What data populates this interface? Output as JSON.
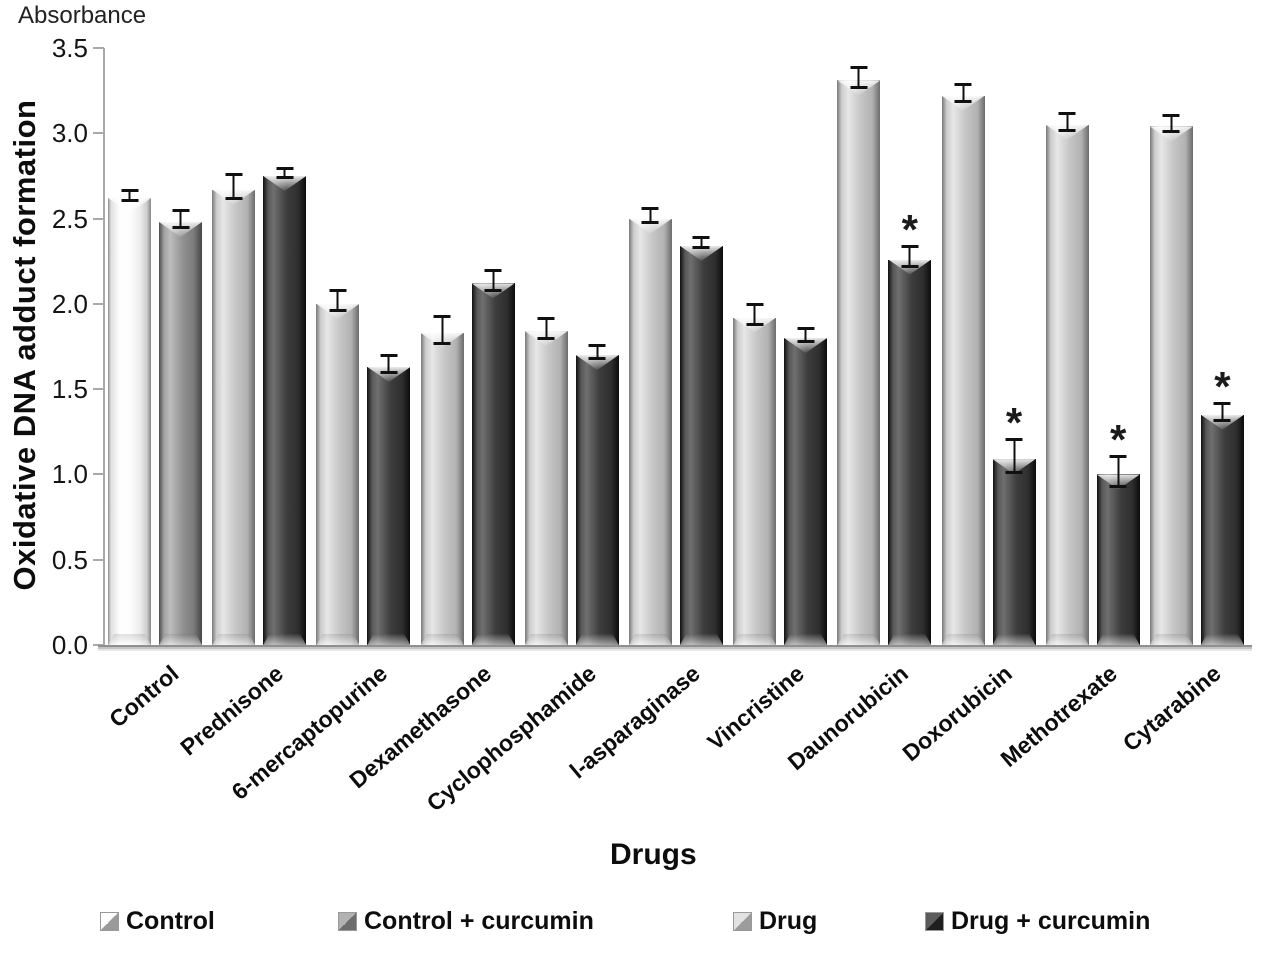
{
  "absorbance_label": "Absorbance",
  "y_axis": {
    "title": "Oxidative DNA adduct formation",
    "ticks": [
      "0.0",
      "0.5",
      "1.0",
      "1.5",
      "2.0",
      "2.5",
      "3.0",
      "3.5"
    ],
    "min": 0.0,
    "max": 3.5
  },
  "x_axis": {
    "title": "Drugs"
  },
  "legend": {
    "position": "bottom",
    "items": [
      {
        "label": "Control",
        "color": "#f7f7f7"
      },
      {
        "label": "Control + curcumin",
        "color": "#8e8e8e"
      },
      {
        "label": "Drug",
        "color": "#c6c6c6"
      },
      {
        "label": "Drug + curcumin",
        "color": "#3d3d3d"
      }
    ]
  },
  "chart_data": {
    "type": "bar",
    "title": "",
    "xlabel": "Drugs",
    "ylabel": "Oxidative DNA adduct formation (Absorbance)",
    "ylim": [
      0,
      3.5
    ],
    "grid": false,
    "error_bars": true,
    "error_bar_color": "#101010",
    "significance_marker": "*",
    "categories": [
      "Control",
      "Prednisone",
      "6-mercaptopurine",
      "Dexamethasone",
      "Cyclophosphamide",
      "l-asparaginase",
      "Vincristine",
      "Daunorubicin",
      "Doxorubicin",
      "Methotrexate",
      "Cytarabine"
    ],
    "series": [
      {
        "name": "Control",
        "color": "#f7f7f7"
      },
      {
        "name": "Control + curcumin",
        "color": "#8e8e8e"
      },
      {
        "name": "Drug",
        "color": "#c6c6c6"
      },
      {
        "name": "Drug + curcumin",
        "color": "#3d3d3d"
      }
    ],
    "groups": [
      {
        "category": "Control",
        "bars": [
          {
            "series": "Control",
            "value": 2.62,
            "error": 0.02,
            "significant": false
          },
          {
            "series": "Control + curcumin",
            "value": 2.48,
            "error": 0.04,
            "significant": false
          }
        ]
      },
      {
        "category": "Prednisone",
        "bars": [
          {
            "series": "Drug",
            "value": 2.67,
            "error": 0.06,
            "significant": false
          },
          {
            "series": "Drug + curcumin",
            "value": 2.75,
            "error": 0.02,
            "significant": false
          }
        ]
      },
      {
        "category": "6-mercaptopurine",
        "bars": [
          {
            "series": "Drug",
            "value": 2.0,
            "error": 0.05,
            "significant": false
          },
          {
            "series": "Drug + curcumin",
            "value": 1.63,
            "error": 0.04,
            "significant": false
          }
        ]
      },
      {
        "category": "Dexamethasone",
        "bars": [
          {
            "series": "Drug",
            "value": 1.83,
            "error": 0.07,
            "significant": false
          },
          {
            "series": "Drug + curcumin",
            "value": 2.12,
            "error": 0.05,
            "significant": false
          }
        ]
      },
      {
        "category": "Cyclophosphamide",
        "bars": [
          {
            "series": "Drug",
            "value": 1.84,
            "error": 0.05,
            "significant": false
          },
          {
            "series": "Drug + curcumin",
            "value": 1.7,
            "error": 0.03,
            "significant": false
          }
        ]
      },
      {
        "category": "l-asparaginase",
        "bars": [
          {
            "series": "Drug",
            "value": 2.5,
            "error": 0.03,
            "significant": false
          },
          {
            "series": "Drug + curcumin",
            "value": 2.34,
            "error": 0.02,
            "significant": false
          }
        ]
      },
      {
        "category": "Vincristine",
        "bars": [
          {
            "series": "Drug",
            "value": 1.92,
            "error": 0.05,
            "significant": false
          },
          {
            "series": "Drug + curcumin",
            "value": 1.8,
            "error": 0.03,
            "significant": false
          }
        ]
      },
      {
        "category": "Daunorubicin",
        "bars": [
          {
            "series": "Drug",
            "value": 3.31,
            "error": 0.05,
            "significant": false
          },
          {
            "series": "Drug + curcumin",
            "value": 2.26,
            "error": 0.05,
            "significant": true
          }
        ]
      },
      {
        "category": "Doxorubicin",
        "bars": [
          {
            "series": "Drug",
            "value": 3.22,
            "error": 0.04,
            "significant": false
          },
          {
            "series": "Drug + curcumin",
            "value": 1.09,
            "error": 0.09,
            "significant": true
          }
        ]
      },
      {
        "category": "Methotrexate",
        "bars": [
          {
            "series": "Drug",
            "value": 3.05,
            "error": 0.04,
            "significant": false
          },
          {
            "series": "Drug + curcumin",
            "value": 1.0,
            "error": 0.08,
            "significant": true
          }
        ]
      },
      {
        "category": "Cytarabine",
        "bars": [
          {
            "series": "Drug",
            "value": 3.04,
            "error": 0.04,
            "significant": false
          },
          {
            "series": "Drug + curcumin",
            "value": 1.35,
            "error": 0.04,
            "significant": true
          }
        ]
      }
    ]
  }
}
